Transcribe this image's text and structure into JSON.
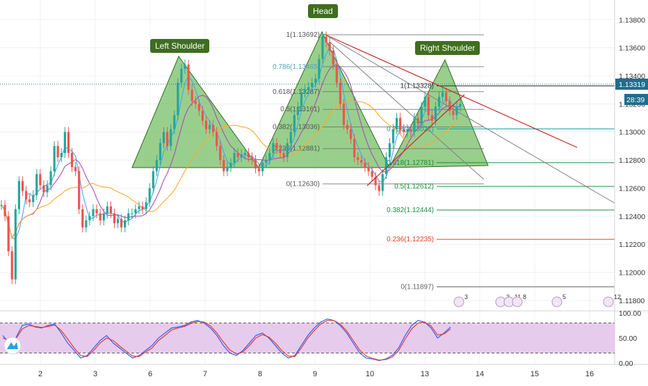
{
  "chart_data": {
    "type": "line",
    "instrument_note": "",
    "main_pane": {
      "ylim": [
        1.1176,
        1.1394
      ],
      "y_ticks": [
        "1.13800",
        "1.13600",
        "1.13400",
        "1.13200",
        "1.13000",
        "1.12800",
        "1.12600",
        "1.12400",
        "1.12200",
        "1.12000",
        "1.11800"
      ],
      "y_tick_values": [
        1.138,
        1.136,
        1.134,
        1.132,
        1.13,
        1.128,
        1.126,
        1.124,
        1.122,
        1.12,
        1.118
      ],
      "x_ticks": [
        "2",
        "3",
        "6",
        "7",
        "8",
        "9",
        "10",
        "13",
        "14",
        "15",
        "16"
      ],
      "current_price": "1.13319",
      "countdown": "28:39",
      "series": {
        "price": {
          "x": [
            0,
            5,
            10,
            15,
            20,
            25,
            30,
            35,
            40,
            45,
            50,
            55,
            60,
            65,
            70,
            75,
            80,
            85,
            90,
            95,
            100,
            105,
            110,
            115,
            120,
            125,
            130,
            135,
            140,
            145,
            150,
            155,
            160,
            165,
            170,
            175,
            180,
            185,
            190,
            195,
            200,
            205,
            210,
            215,
            220,
            225,
            230,
            235,
            240,
            245,
            250,
            255,
            260,
            265,
            270,
            275,
            280,
            285,
            290,
            295,
            300,
            305,
            310,
            315,
            320,
            325,
            330,
            335,
            340,
            345,
            350,
            355,
            360,
            365,
            370,
            375,
            380,
            385,
            390,
            395,
            400,
            405,
            410,
            415,
            420,
            425,
            430,
            435,
            440,
            445,
            450,
            455,
            460,
            465,
            470,
            475,
            480,
            485,
            490,
            495,
            500,
            505,
            510,
            515,
            520,
            525,
            530,
            535,
            540,
            545,
            550,
            555,
            560,
            565,
            570,
            575,
            580,
            585,
            590,
            595,
            600,
            605,
            610,
            615,
            620,
            625,
            630,
            635,
            640,
            645,
            650
          ],
          "y": [
            1.1248,
            1.124,
            1.1215,
            1.1195,
            1.1245,
            1.1265,
            1.1258,
            1.1252,
            1.125,
            1.1255,
            1.127,
            1.1262,
            1.1257,
            1.1262,
            1.1272,
            1.129,
            1.1282,
            1.1285,
            1.13,
            1.1285,
            1.1275,
            1.1272,
            1.1245,
            1.1232,
            1.1237,
            1.124,
            1.1245,
            1.1242,
            1.1237,
            1.1242,
            1.1247,
            1.1242,
            1.1235,
            1.1238,
            1.1232,
            1.1237,
            1.1242,
            1.1242,
            1.1245,
            1.1247,
            1.1245,
            1.125,
            1.126,
            1.1272,
            1.128,
            1.1292,
            1.13,
            1.129,
            1.1302,
            1.1312,
            1.1335,
            1.1345,
            1.1348,
            1.133,
            1.1322,
            1.132,
            1.1315,
            1.1308,
            1.1302,
            1.1305,
            1.13,
            1.129,
            1.128,
            1.1272,
            1.1275,
            1.1278,
            1.1285,
            1.1282,
            1.1284,
            1.1285,
            1.1282,
            1.128,
            1.1274,
            1.1272,
            1.1278,
            1.128,
            1.1285,
            1.1292,
            1.1288,
            1.1285,
            1.1282,
            1.1292,
            1.13,
            1.1312,
            1.1318,
            1.1328,
            1.133,
            1.1332,
            1.1335,
            1.1338,
            1.1352,
            1.1368,
            1.1364,
            1.1358,
            1.1348,
            1.1335,
            1.132,
            1.1305,
            1.1302,
            1.1295,
            1.1282,
            1.128,
            1.1278,
            1.1275,
            1.1272,
            1.1268,
            1.1262,
            1.1258,
            1.127,
            1.1282,
            1.1292,
            1.1302,
            1.131,
            1.1302,
            1.13,
            1.1302,
            1.13,
            1.131,
            1.1306,
            1.1318,
            1.1325,
            1.1312,
            1.1308,
            1.1318,
            1.1325,
            1.1328,
            1.1322,
            1.1315,
            1.1312,
            1.1318,
            1.132
          ]
        }
      },
      "fibonacci_left": [
        {
          "label": "1(1.13692)",
          "value": 1.13692
        },
        {
          "label": "0.786(1.13465)",
          "value": 1.13465
        },
        {
          "label": "0.618(1.13287)",
          "value": 1.13287
        },
        {
          "label": "0.5(1.13161)",
          "value": 1.13161
        },
        {
          "label": "0.382(1.13036)",
          "value": 1.13036
        },
        {
          "label": "0.236(1.12881)",
          "value": 1.12881
        },
        {
          "label": "0(1.12630)",
          "value": 1.1263
        }
      ],
      "fibonacci_right": [
        {
          "label": "1(1.13328)",
          "value": 1.13328,
          "color": "#333333"
        },
        {
          "label": "0.786(1.13022)",
          "value": 1.13022,
          "color": "#0e9aa7"
        },
        {
          "label": "0.618(1.12781)",
          "value": 1.12781,
          "color": "#1a8f3a"
        },
        {
          "label": "0.5(1.12612)",
          "value": 1.12612,
          "color": "#1a8f3a"
        },
        {
          "label": "0.382(1.12444)",
          "value": 1.12444,
          "color": "#1a8f3a"
        },
        {
          "label": "0.236(1.12235)",
          "value": 1.12235,
          "color": "#e0402a"
        },
        {
          "label": "0(1.11897)",
          "value": 1.11897,
          "color": "#666666"
        }
      ],
      "patterns": [
        {
          "label": "Left Shoulder"
        },
        {
          "label": "Head"
        },
        {
          "label": "Right Shoulder"
        }
      ],
      "event_badges": [
        "3",
        "3",
        "11",
        "8",
        "5",
        "12"
      ]
    },
    "oscillator_pane": {
      "ylim": [
        0,
        100
      ],
      "y_ticks": [
        "100.00",
        "50.00",
        "0.00"
      ],
      "y_tick_values": [
        100,
        50,
        0
      ],
      "overbought": 80,
      "oversold": 20,
      "k_line": [
        55,
        40,
        50,
        75,
        78,
        72,
        70,
        75,
        78,
        60,
        40,
        25,
        10,
        15,
        30,
        45,
        55,
        40,
        30,
        20,
        10,
        15,
        25,
        35,
        50,
        60,
        70,
        72,
        75,
        82,
        85,
        80,
        70,
        55,
        35,
        20,
        15,
        25,
        40,
        55,
        60,
        50,
        35,
        20,
        10,
        15,
        35,
        55,
        70,
        82,
        88,
        85,
        75,
        60,
        40,
        20,
        10,
        8,
        5,
        8,
        15,
        30,
        55,
        75,
        85,
        82,
        70,
        50,
        60,
        72
      ],
      "d_line": [
        50,
        45,
        48,
        68,
        75,
        73,
        71,
        73,
        76,
        65,
        48,
        30,
        15,
        13,
        25,
        40,
        50,
        45,
        34,
        24,
        14,
        13,
        22,
        30,
        45,
        55,
        66,
        70,
        73,
        79,
        83,
        82,
        74,
        60,
        42,
        26,
        18,
        22,
        35,
        50,
        57,
        52,
        40,
        25,
        14,
        13,
        30,
        50,
        65,
        78,
        85,
        85,
        78,
        64,
        45,
        26,
        14,
        9,
        6,
        7,
        12,
        25,
        48,
        68,
        80,
        82,
        74,
        56,
        58,
        68
      ],
      "colors": {
        "k": "#2962ff",
        "d": "#e53935"
      }
    },
    "colors": {
      "pattern_fill": "#7cc26b",
      "pattern_stroke": "#2e6b1e",
      "label_bg": "#3f6e1e",
      "price_badge": "#1e6e8c",
      "up_candle": "#26a69a",
      "down_candle": "#ef5350",
      "ma_fast": "#42a5f5",
      "ma_mid": "#ab47bc",
      "ma_slow": "#ffa726",
      "trend_red": "#c62828",
      "trend_gray": "#808080",
      "osc_band": "#e1bee7"
    }
  }
}
